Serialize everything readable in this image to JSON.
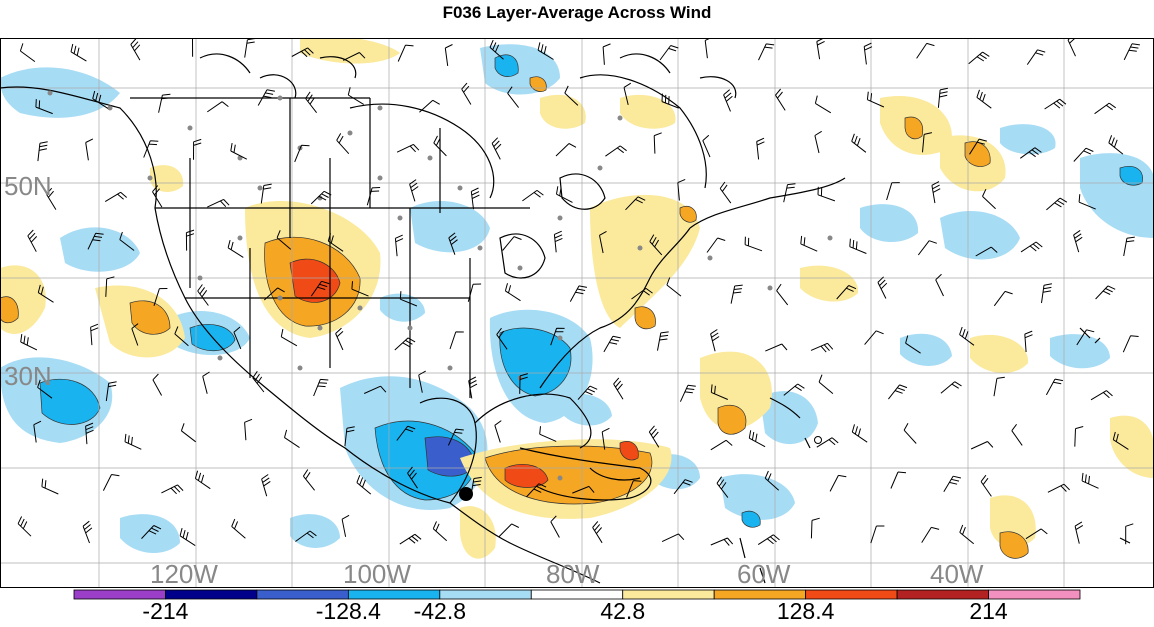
{
  "title": "F036 Layer-Average Across Wind",
  "map": {
    "lat_labels": [
      "50N",
      "30N"
    ],
    "lon_labels": [
      "120W",
      "100W",
      "80W",
      "60W",
      "40W"
    ],
    "grid": true
  },
  "legend": {
    "colors": [
      "#9b3fc9",
      "#00008b",
      "#3a5fcd",
      "#19b4f0",
      "#a7dcf5",
      "#ffffff",
      "#fbe99c",
      "#f5a623",
      "#f04a16",
      "#b22222",
      "#f290bf"
    ],
    "labels": [
      "-214",
      "-128.4",
      "-42.8",
      "42.8",
      "128.4",
      "214"
    ]
  }
}
